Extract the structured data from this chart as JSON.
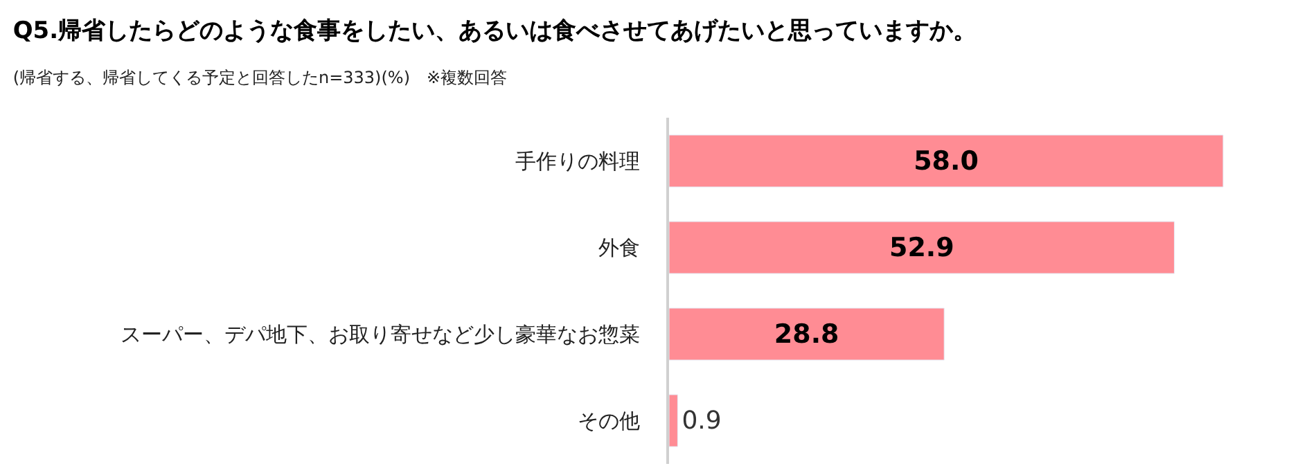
{
  "chart_data": {
    "type": "bar",
    "orientation": "horizontal",
    "title": "Q5.帰省したらどのような食事をしたい、あるいは食べさせてあげたいと思っていますか。",
    "subtitle": "(帰省する、帰省してくる予定と回答したn=333)(%)　※複数回答",
    "categories": [
      "手作りの料理",
      "外食",
      "スーパー、デパ地下、お取り寄せなど少し豪華なお惣菜",
      "その他"
    ],
    "values": [
      58.0,
      52.9,
      28.8,
      0.9
    ],
    "value_labels": [
      "58.0",
      "52.9",
      "28.8",
      "0.9"
    ],
    "color": "#ff8c94"
  }
}
